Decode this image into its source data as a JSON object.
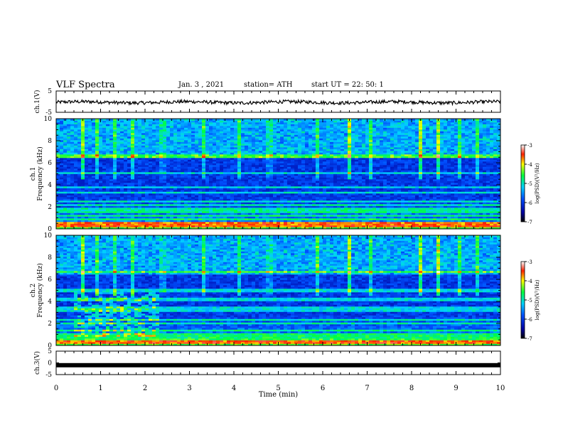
{
  "header": {
    "title": "VLF Spectra",
    "date": "Jan. 3 , 2021",
    "station": "station= ATH",
    "start": "start UT = 22: 50: 1"
  },
  "chart_data": [
    {
      "name": "ch1-waveform",
      "type": "line",
      "ylabel": "ch.1(V)",
      "ylim": [
        -5,
        5
      ],
      "yticks": [
        "5",
        "-5"
      ],
      "xlim": [
        0,
        10
      ],
      "level": -0.3,
      "color": "#000000"
    },
    {
      "name": "ch1-spectrogram",
      "type": "heatmap",
      "ylabel": "ch.1\nFrequency (kHz)",
      "ylim": [
        0,
        10
      ],
      "yticks": [
        "0",
        "2",
        "4",
        "6",
        "8",
        "10"
      ],
      "xlim": [
        0,
        10
      ],
      "colorbar": {
        "label": "log(PSD)(V²/Hz)",
        "range": [
          -7,
          -3
        ],
        "ticks": [
          "-3",
          "-4",
          "-5",
          "-6",
          "-7"
        ]
      },
      "bands_khz": [
        0.3,
        0.6,
        0.9,
        1.2,
        1.5,
        1.8,
        2.2,
        2.5,
        3.3,
        3.8,
        5.1,
        6.6
      ],
      "burst_times_min": [
        0.6,
        0.9,
        1.3,
        1.7,
        2.4,
        3.3,
        4.1,
        4.8,
        5.9,
        6.6,
        7.1,
        8.2,
        8.6,
        9.1,
        9.5
      ]
    },
    {
      "name": "ch2-spectrogram",
      "type": "heatmap",
      "ylabel": "ch.2\nFrequency (kHz)",
      "ylim": [
        0,
        10
      ],
      "yticks": [
        "0",
        "2",
        "4",
        "6",
        "8",
        "10"
      ],
      "xlim": [
        0,
        10
      ],
      "colorbar": {
        "label": "log(PSD)(V²/Hz)",
        "range": [
          -7,
          -3
        ],
        "ticks": [
          "-3",
          "-4",
          "-5",
          "-6",
          "-7"
        ]
      },
      "bands_khz": [
        0.3,
        0.7,
        1.0,
        1.4,
        2.0,
        2.3,
        3.2,
        3.5,
        4.2,
        5.0,
        6.7
      ],
      "burst_times_min": [
        0.6,
        0.9,
        1.3,
        1.7,
        2.4,
        3.3,
        4.1,
        4.8,
        5.9,
        6.6,
        7.1,
        8.2,
        8.6,
        9.1,
        9.5
      ]
    },
    {
      "name": "ch3-waveform",
      "type": "line",
      "ylabel": "ch.3(V)",
      "ylim": [
        -5,
        5
      ],
      "yticks": [
        "5",
        "0",
        "-5"
      ],
      "xlim": [
        0,
        10
      ],
      "level": -1.0,
      "color": "#000000"
    }
  ],
  "xaxis": {
    "label": "Time (min)",
    "ticks": [
      "0",
      "1",
      "2",
      "3",
      "4",
      "5",
      "6",
      "7",
      "8",
      "9",
      "10"
    ]
  }
}
